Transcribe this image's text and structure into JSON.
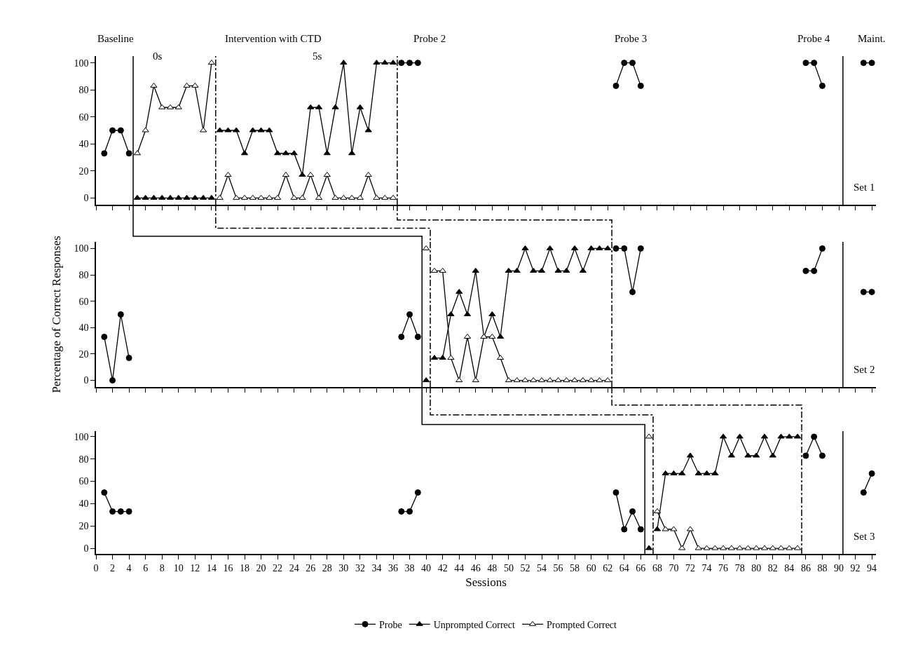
{
  "chart_data": [
    {
      "type": "line",
      "xlim": [
        0,
        94.5
      ],
      "ylim": [
        -5,
        105
      ],
      "xticks": [
        0,
        2,
        4,
        6,
        8,
        10,
        12,
        14,
        16,
        18,
        20,
        22,
        24,
        26,
        28,
        30,
        32,
        34,
        36,
        38,
        40,
        42,
        44,
        46,
        48,
        50,
        52,
        54,
        56,
        58,
        60,
        62,
        64,
        66,
        68,
        70,
        72,
        74,
        76,
        78,
        80,
        82,
        84,
        86,
        88,
        90,
        92,
        94
      ],
      "yticks": [
        0,
        20,
        40,
        60,
        80,
        100
      ],
      "tick_labels": "y",
      "series": [
        {
          "name": "Probe",
          "color": "#000000",
          "marker": "circle",
          "x": [
            1,
            2,
            3,
            4,
            5,
            37,
            38,
            39,
            40,
            63,
            64,
            65,
            66,
            67,
            86,
            87,
            88,
            89,
            93,
            94
          ],
          "values": [
            33,
            50,
            50,
            33,
            null,
            100,
            100,
            100,
            null,
            83,
            100,
            100,
            83,
            null,
            100,
            100,
            83,
            null,
            100,
            100
          ]
        },
        {
          "name": "Unprompted Correct",
          "color": "#000000",
          "marker": "triangle",
          "x": [
            5,
            6,
            7,
            8,
            9,
            10,
            11,
            12,
            13,
            14,
            14.5,
            15,
            16,
            17,
            18,
            19,
            20,
            21,
            22,
            23,
            24,
            25,
            26,
            27,
            28,
            29,
            30,
            31,
            32,
            33,
            34,
            35,
            36
          ],
          "values": [
            0,
            0,
            0,
            0,
            0,
            0,
            0,
            0,
            0,
            0,
            null,
            50,
            50,
            50,
            33,
            50,
            50,
            50,
            33,
            33,
            33,
            17,
            67,
            67,
            33,
            67,
            100,
            33,
            67,
            50,
            100,
            100,
            100
          ]
        },
        {
          "name": "Prompted Correct",
          "color": "#ffffff",
          "marker": "triangle",
          "x": [
            5,
            6,
            7,
            8,
            9,
            10,
            11,
            12,
            13,
            14,
            14.5,
            15,
            16,
            17,
            18,
            19,
            20,
            21,
            22,
            23,
            24,
            25,
            26,
            27,
            28,
            29,
            30,
            31,
            32,
            33,
            34,
            35,
            36
          ],
          "values": [
            33,
            50,
            83,
            67,
            67,
            67,
            83,
            83,
            50,
            100,
            null,
            0,
            17,
            0,
            0,
            0,
            0,
            0,
            0,
            17,
            0,
            0,
            17,
            0,
            17,
            0,
            0,
            0,
            0,
            17,
            0,
            0,
            0
          ]
        }
      ],
      "ref_lines": [
        {
          "axis": "x",
          "value": 4.5,
          "line_style": "solid"
        },
        {
          "axis": "x",
          "value": 14.5,
          "line_style": "dashed"
        },
        {
          "axis": "x",
          "value": 36.5,
          "line_style": "dashed"
        },
        {
          "axis": "x",
          "value": 90.5,
          "line_style": "solid"
        }
      ],
      "annotations": [
        "Baseline",
        "Intervention with CTD",
        "0s",
        "5s",
        "Probe 2",
        "Probe 3",
        "Probe 4",
        "Maint.",
        "Set 1"
      ],
      "legend": "bottom"
    },
    {
      "type": "line",
      "xlim": [
        0,
        94.5
      ],
      "ylim": [
        -5,
        105
      ],
      "xticks": [
        0,
        2,
        4,
        6,
        8,
        10,
        12,
        14,
        16,
        18,
        20,
        22,
        24,
        26,
        28,
        30,
        32,
        34,
        36,
        38,
        40,
        42,
        44,
        46,
        48,
        50,
        52,
        54,
        56,
        58,
        60,
        62,
        64,
        66,
        68,
        70,
        72,
        74,
        76,
        78,
        80,
        82,
        84,
        86,
        88,
        90,
        92,
        94
      ],
      "yticks": [
        0,
        20,
        40,
        60,
        80,
        100
      ],
      "tick_labels": "y",
      "ylabel": "Percentage of Correct Responses",
      "series": [
        {
          "color": "#000000",
          "marker": "circle",
          "x": [
            1,
            2,
            3,
            4,
            5,
            37,
            38,
            39,
            40,
            63,
            64,
            65,
            66,
            67,
            86,
            87,
            88,
            89,
            93,
            94
          ],
          "values": [
            33,
            0,
            50,
            17,
            null,
            33,
            50,
            33,
            null,
            100,
            100,
            67,
            100,
            null,
            83,
            83,
            100,
            null,
            67,
            67
          ]
        },
        {
          "color": "#000000",
          "marker": "triangle",
          "x": [
            40,
            40.5,
            41,
            42,
            43,
            44,
            45,
            46,
            47,
            48,
            49,
            50,
            51,
            52,
            53,
            54,
            55,
            56,
            57,
            58,
            59,
            60,
            61,
            62
          ],
          "values": [
            0,
            null,
            17,
            17,
            50,
            67,
            50,
            83,
            33,
            50,
            33,
            83,
            83,
            100,
            83,
            83,
            100,
            83,
            83,
            100,
            83,
            100,
            100,
            100
          ]
        },
        {
          "color": "#ffffff",
          "marker": "triangle",
          "x": [
            40,
            40.5,
            41,
            42,
            43,
            44,
            45,
            46,
            47,
            48,
            49,
            50,
            51,
            52,
            53,
            54,
            55,
            56,
            57,
            58,
            59,
            60,
            61,
            62
          ],
          "values": [
            100,
            null,
            83,
            83,
            17,
            0,
            33,
            0,
            33,
            33,
            17,
            0,
            0,
            0,
            0,
            0,
            0,
            0,
            0,
            0,
            0,
            0,
            0,
            0
          ]
        }
      ],
      "ref_lines": [
        {
          "axis": "x",
          "value": 39.5,
          "line_style": "solid"
        },
        {
          "axis": "x",
          "value": 40.5,
          "line_style": "dashed"
        },
        {
          "axis": "x",
          "value": 62.5,
          "line_style": "dashed"
        },
        {
          "axis": "x",
          "value": 90.5,
          "line_style": "solid"
        }
      ],
      "annotations": [
        "Set 2"
      ]
    },
    {
      "type": "line",
      "xlim": [
        0,
        94.5
      ],
      "ylim": [
        -5,
        105
      ],
      "xticks": [
        0,
        2,
        4,
        6,
        8,
        10,
        12,
        14,
        16,
        18,
        20,
        22,
        24,
        26,
        28,
        30,
        32,
        34,
        36,
        38,
        40,
        42,
        44,
        46,
        48,
        50,
        52,
        54,
        56,
        58,
        60,
        62,
        64,
        66,
        68,
        70,
        72,
        74,
        76,
        78,
        80,
        82,
        84,
        86,
        88,
        90,
        92,
        94
      ],
      "yticks": [
        0,
        20,
        40,
        60,
        80,
        100
      ],
      "xlabel": "Sessions",
      "series": [
        {
          "color": "#000000",
          "marker": "circle",
          "x": [
            1,
            2,
            3,
            4,
            5,
            37,
            38,
            39,
            40,
            63,
            64,
            65,
            66,
            67,
            86,
            87,
            88,
            89,
            93,
            94
          ],
          "values": [
            50,
            33,
            33,
            33,
            null,
            33,
            33,
            50,
            null,
            50,
            17,
            33,
            17,
            null,
            83,
            100,
            83,
            null,
            50,
            67
          ]
        },
        {
          "color": "#000000",
          "marker": "triangle",
          "x": [
            67,
            67.5,
            68,
            69,
            70,
            71,
            72,
            73,
            74,
            75,
            76,
            77,
            78,
            79,
            80,
            81,
            82,
            83,
            84,
            85
          ],
          "values": [
            0,
            null,
            17,
            67,
            67,
            67,
            83,
            67,
            67,
            67,
            100,
            83,
            100,
            83,
            83,
            100,
            83,
            100,
            100,
            100
          ]
        },
        {
          "color": "#ffffff",
          "marker": "triangle",
          "x": [
            67,
            67.5,
            68,
            69,
            70,
            71,
            72,
            73,
            74,
            75,
            76,
            77,
            78,
            79,
            80,
            81,
            82,
            83,
            84,
            85
          ],
          "values": [
            100,
            null,
            33,
            17,
            17,
            0,
            17,
            0,
            0,
            0,
            0,
            0,
            0,
            0,
            0,
            0,
            0,
            0,
            0,
            0
          ]
        }
      ],
      "ref_lines": [
        {
          "axis": "x",
          "value": 66.5,
          "line_style": "solid"
        },
        {
          "axis": "x",
          "value": 67.5,
          "line_style": "dashed"
        },
        {
          "axis": "x",
          "value": 85.5,
          "line_style": "dashed"
        },
        {
          "axis": "x",
          "value": 90.5,
          "line_style": "solid"
        }
      ],
      "annotations": [
        "Set 3"
      ]
    }
  ]
}
